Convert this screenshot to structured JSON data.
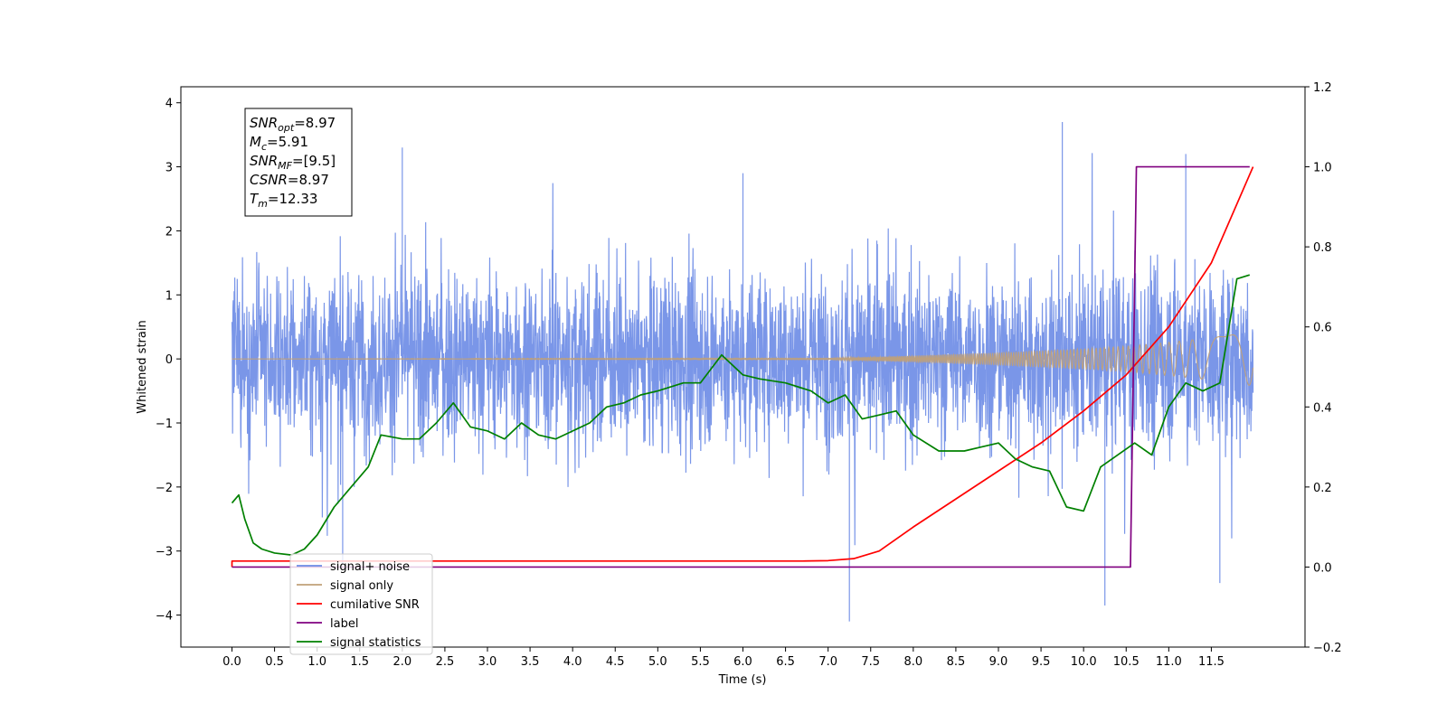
{
  "chart_data": {
    "type": "line",
    "xlabel": "Time (s)",
    "ylabel": "Whitened strain",
    "xlim": [
      -0.6,
      12.6
    ],
    "ylim": [
      -4.5,
      4.25
    ],
    "y2lim": [
      -0.2,
      1.2
    ],
    "x_ticks": [
      "0.0",
      "0.5",
      "1.0",
      "1.5",
      "2.0",
      "2.5",
      "3.0",
      "3.5",
      "4.0",
      "4.5",
      "5.0",
      "5.5",
      "6.0",
      "6.5",
      "7.0",
      "7.5",
      "8.0",
      "8.5",
      "9.0",
      "9.5",
      "10.0",
      "10.5",
      "11.0",
      "11.5"
    ],
    "y_ticks": [
      "4",
      "3",
      "2",
      "1",
      "0",
      "−1",
      "−2",
      "−3",
      "−4"
    ],
    "y2_ticks": [
      "1.2",
      "1.0",
      "0.8",
      "0.6",
      "0.4",
      "0.2",
      "0.0",
      "−0.2"
    ],
    "legend_placement": "lower-left",
    "annotations": [
      {
        "name": "SNR",
        "sub": "opt",
        "value": "=8.97"
      },
      {
        "name": "M",
        "sub": "c",
        "value": "=5.91"
      },
      {
        "name": "SNR",
        "sub": "MF",
        "value": "=[9.5]"
      },
      {
        "name": "CSNR",
        "sub": "",
        "value": "=8.97"
      },
      {
        "name": "T",
        "sub": "m",
        "value": "=12.33"
      }
    ],
    "series": [
      {
        "name": "signal+ noise",
        "color": "#6b8be6",
        "axis": "left",
        "x_range": [
          0.0,
          11.99
        ],
        "noise_std": 0.95,
        "envelope_max": [
          [
            0.0,
            2.3
          ],
          [
            2.0,
            3.3
          ],
          [
            6.0,
            2.9
          ],
          [
            9.75,
            3.7
          ],
          [
            11.2,
            3.2
          ],
          [
            11.99,
            2.2
          ]
        ],
        "envelope_min": [
          [
            0.0,
            -2.1
          ],
          [
            1.3,
            -3.2
          ],
          [
            7.25,
            -4.1
          ],
          [
            10.25,
            -3.85
          ],
          [
            11.6,
            -3.5
          ],
          [
            11.99,
            -1.6
          ]
        ]
      },
      {
        "name": "signal only",
        "color": "#c0a078",
        "axis": "left",
        "x_range": [
          0.0,
          11.99
        ],
        "amplitude": [
          [
            0.0,
            0.0
          ],
          [
            7.0,
            0.01
          ],
          [
            8.0,
            0.05
          ],
          [
            9.0,
            0.1
          ],
          [
            10.0,
            0.16
          ],
          [
            10.5,
            0.2
          ],
          [
            11.0,
            0.26
          ],
          [
            11.5,
            0.33
          ],
          [
            11.99,
            0.42
          ]
        ]
      },
      {
        "name": "cumilative SNR",
        "color": "#ff0000",
        "axis": "right",
        "x": [
          0.0,
          0.0,
          6.7,
          7.0,
          7.3,
          7.6,
          8.0,
          8.5,
          9.0,
          9.5,
          10.0,
          10.5,
          11.0,
          11.5,
          11.99
        ],
        "y": [
          0.0,
          0.015,
          0.015,
          0.016,
          0.021,
          0.04,
          0.1,
          0.17,
          0.24,
          0.31,
          0.39,
          0.48,
          0.6,
          0.76,
          1.0
        ]
      },
      {
        "name": "label",
        "color": "#800080",
        "axis": "right",
        "x": [
          0.0,
          10.55,
          10.62,
          11.95
        ],
        "y": [
          0.0,
          0.0,
          1.0,
          1.0
        ]
      },
      {
        "name": "signal statistics",
        "color": "#008000",
        "axis": "right",
        "x": [
          0.0,
          0.08,
          0.15,
          0.25,
          0.35,
          0.5,
          0.7,
          0.85,
          1.0,
          1.2,
          1.4,
          1.6,
          1.75,
          2.0,
          2.2,
          2.4,
          2.6,
          2.8,
          3.0,
          3.2,
          3.4,
          3.6,
          3.8,
          4.0,
          4.2,
          4.4,
          4.6,
          4.8,
          5.0,
          5.3,
          5.5,
          5.75,
          6.0,
          6.2,
          6.5,
          6.8,
          7.0,
          7.2,
          7.4,
          7.6,
          7.8,
          8.0,
          8.3,
          8.6,
          8.8,
          9.0,
          9.2,
          9.4,
          9.6,
          9.8,
          10.0,
          10.2,
          10.4,
          10.6,
          10.8,
          11.0,
          11.2,
          11.4,
          11.6,
          11.8,
          11.95
        ],
        "y": [
          0.16,
          0.18,
          0.12,
          0.06,
          0.045,
          0.035,
          0.03,
          0.045,
          0.08,
          0.15,
          0.2,
          0.25,
          0.33,
          0.32,
          0.32,
          0.36,
          0.41,
          0.35,
          0.34,
          0.32,
          0.36,
          0.33,
          0.32,
          0.34,
          0.36,
          0.4,
          0.41,
          0.43,
          0.44,
          0.46,
          0.46,
          0.53,
          0.48,
          0.47,
          0.46,
          0.44,
          0.41,
          0.43,
          0.37,
          0.38,
          0.39,
          0.33,
          0.29,
          0.29,
          0.3,
          0.31,
          0.27,
          0.25,
          0.24,
          0.15,
          0.14,
          0.25,
          0.28,
          0.31,
          0.28,
          0.4,
          0.46,
          0.44,
          0.46,
          0.72,
          0.73
        ]
      }
    ]
  }
}
